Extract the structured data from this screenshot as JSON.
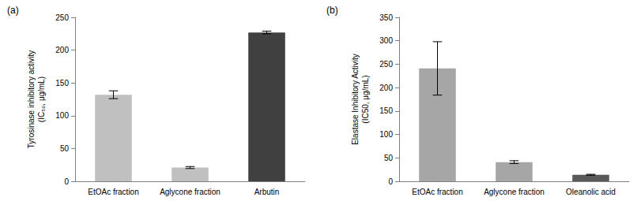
{
  "chart_data": [
    {
      "type": "bar",
      "title": "(a)",
      "ylabel": "Tyrosinase inhibitory activity\n(IC₅₀, μg/mL)",
      "categories": [
        "EtOAc fraction",
        "Aglycone fraction",
        "Arbutin"
      ],
      "values": [
        132,
        21,
        227
      ],
      "errors": [
        6,
        1.5,
        2
      ],
      "colors": [
        "#c0c0c0",
        "#c0c0c0",
        "#404040"
      ],
      "ylim": [
        0,
        250
      ],
      "yticks": [
        0,
        50,
        100,
        150,
        200,
        250
      ],
      "grid": false
    },
    {
      "type": "bar",
      "title": "(b)",
      "ylabel": "Elastase Inhibitory Activity\n(IC50, μg/mL)",
      "categories": [
        "EtOAc fraction",
        "Aglycone fraction",
        "Oleanolic acid"
      ],
      "values": [
        241,
        41,
        14
      ],
      "errors": [
        57,
        3,
        1
      ],
      "colors": [
        "#a6a6a6",
        "#a6a6a6",
        "#595959"
      ],
      "ylim": [
        0,
        350
      ],
      "yticks": [
        0,
        50,
        100,
        150,
        200,
        250,
        300,
        350
      ],
      "grid": false
    }
  ]
}
